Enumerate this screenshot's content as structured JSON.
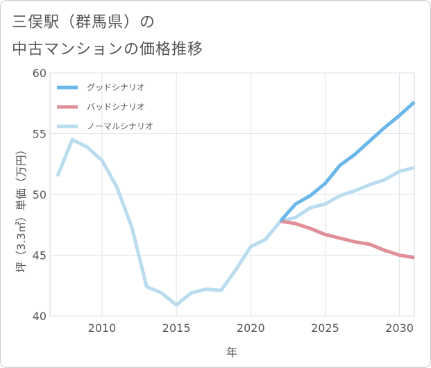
{
  "title_line1": "三俣駅（群馬県）の",
  "title_line2": "中古マンションの価格推移",
  "chart_data": {
    "type": "line",
    "xlabel": "年",
    "ylabel": "坪（3.3㎡）単価（万円）",
    "xlim": [
      2006.5,
      2031
    ],
    "ylim": [
      40,
      60
    ],
    "x_ticks": [
      2010,
      2015,
      2020,
      2025,
      2030
    ],
    "y_ticks": [
      40,
      45,
      50,
      55,
      60
    ],
    "grid": true,
    "legend_position": "top-left",
    "series": [
      {
        "name": "グッドシナリオ",
        "color": "#6bb7ea",
        "x": [
          2022,
          2023,
          2024,
          2025,
          2026,
          2027,
          2028,
          2029,
          2030,
          2031
        ],
        "y": [
          47.8,
          49.2,
          49.9,
          50.9,
          52.4,
          53.3,
          54.4,
          55.5,
          56.5,
          57.6
        ]
      },
      {
        "name": "バッドシナリオ",
        "color": "#e08f98",
        "x": [
          2022,
          2023,
          2024,
          2025,
          2026,
          2027,
          2028,
          2029,
          2030,
          2031
        ],
        "y": [
          47.8,
          47.6,
          47.2,
          46.7,
          46.4,
          46.1,
          45.9,
          45.4,
          45.0,
          44.8
        ]
      },
      {
        "name": "ノーマルシナリオ",
        "color": "#b9dcee",
        "x": [
          2007,
          2008,
          2009,
          2010,
          2011,
          2012,
          2013,
          2014,
          2015,
          2016,
          2017,
          2018,
          2019,
          2020,
          2021,
          2022,
          2023,
          2024,
          2025,
          2026,
          2027,
          2028,
          2029,
          2030,
          2031
        ],
        "y": [
          51.5,
          54.5,
          53.9,
          52.8,
          50.6,
          47.3,
          42.4,
          41.9,
          40.9,
          41.9,
          42.2,
          42.1,
          43.8,
          45.7,
          46.3,
          47.8,
          48.1,
          48.9,
          49.2,
          49.9,
          50.3,
          50.8,
          51.2,
          51.9,
          52.2
        ]
      }
    ]
  }
}
